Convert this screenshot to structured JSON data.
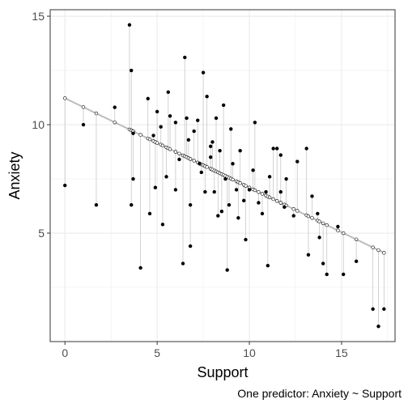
{
  "chart_data": {
    "type": "scatter",
    "xlabel": "Support",
    "ylabel": "Anxiety",
    "caption": "One predictor: Anxiety ~ Support",
    "xlim": [
      -0.8,
      17.9
    ],
    "ylim": [
      0,
      15.3
    ],
    "xticks": [
      0,
      5,
      10,
      15
    ],
    "yticks": [
      5,
      10,
      15
    ],
    "grid": true,
    "regression": {
      "intercept": 11.22,
      "slope": -0.412
    },
    "series": [
      {
        "points": [
          [
            0.0,
            7.2
          ],
          [
            1.0,
            10.0
          ],
          [
            1.7,
            6.3
          ],
          [
            2.7,
            10.8
          ],
          [
            3.5,
            14.6
          ],
          [
            3.6,
            12.5
          ],
          [
            3.6,
            6.3
          ],
          [
            3.7,
            7.5
          ],
          [
            3.7,
            9.6
          ],
          [
            4.1,
            3.4
          ],
          [
            4.5,
            11.2
          ],
          [
            4.6,
            5.9
          ],
          [
            4.8,
            9.5
          ],
          [
            4.9,
            7.1
          ],
          [
            5.0,
            10.6
          ],
          [
            5.2,
            9.9
          ],
          [
            5.3,
            5.4
          ],
          [
            5.5,
            7.6
          ],
          [
            5.6,
            11.5
          ],
          [
            5.7,
            10.4
          ],
          [
            6.0,
            10.1
          ],
          [
            6.0,
            7.0
          ],
          [
            6.2,
            8.4
          ],
          [
            6.4,
            3.6
          ],
          [
            6.5,
            13.1
          ],
          [
            6.6,
            10.3
          ],
          [
            6.7,
            9.3
          ],
          [
            6.8,
            4.4
          ],
          [
            6.8,
            6.3
          ],
          [
            7.0,
            9.7
          ],
          [
            7.2,
            10.2
          ],
          [
            7.3,
            8.2
          ],
          [
            7.4,
            7.8
          ],
          [
            7.5,
            12.4
          ],
          [
            7.6,
            6.9
          ],
          [
            7.7,
            11.3
          ],
          [
            7.9,
            9.0
          ],
          [
            7.9,
            8.5
          ],
          [
            8.0,
            9.2
          ],
          [
            8.1,
            6.9
          ],
          [
            8.2,
            10.3
          ],
          [
            8.3,
            5.8
          ],
          [
            8.4,
            8.8
          ],
          [
            8.5,
            6.0
          ],
          [
            8.6,
            10.9
          ],
          [
            8.7,
            7.5
          ],
          [
            8.8,
            3.3
          ],
          [
            8.9,
            6.3
          ],
          [
            9.0,
            9.8
          ],
          [
            9.1,
            8.2
          ],
          [
            9.3,
            7.0
          ],
          [
            9.4,
            5.7
          ],
          [
            9.5,
            8.8
          ],
          [
            9.7,
            6.5
          ],
          [
            9.8,
            4.7
          ],
          [
            10.0,
            7.0
          ],
          [
            10.2,
            7.9
          ],
          [
            10.3,
            10.1
          ],
          [
            10.5,
            6.4
          ],
          [
            10.7,
            5.9
          ],
          [
            10.9,
            6.9
          ],
          [
            11.0,
            3.5
          ],
          [
            11.1,
            7.6
          ],
          [
            11.3,
            8.9
          ],
          [
            11.5,
            8.9
          ],
          [
            11.7,
            6.9
          ],
          [
            11.7,
            8.6
          ],
          [
            11.9,
            6.2
          ],
          [
            12.0,
            7.5
          ],
          [
            12.4,
            5.8
          ],
          [
            12.6,
            8.3
          ],
          [
            13.1,
            8.9
          ],
          [
            13.2,
            4.0
          ],
          [
            13.4,
            6.7
          ],
          [
            13.7,
            5.9
          ],
          [
            13.8,
            4.8
          ],
          [
            14.0,
            3.6
          ],
          [
            14.2,
            3.1
          ],
          [
            14.8,
            5.3
          ],
          [
            15.1,
            3.1
          ],
          [
            15.8,
            3.7
          ],
          [
            16.7,
            1.5
          ],
          [
            17.0,
            0.7
          ],
          [
            17.3,
            1.5
          ]
        ]
      }
    ]
  }
}
